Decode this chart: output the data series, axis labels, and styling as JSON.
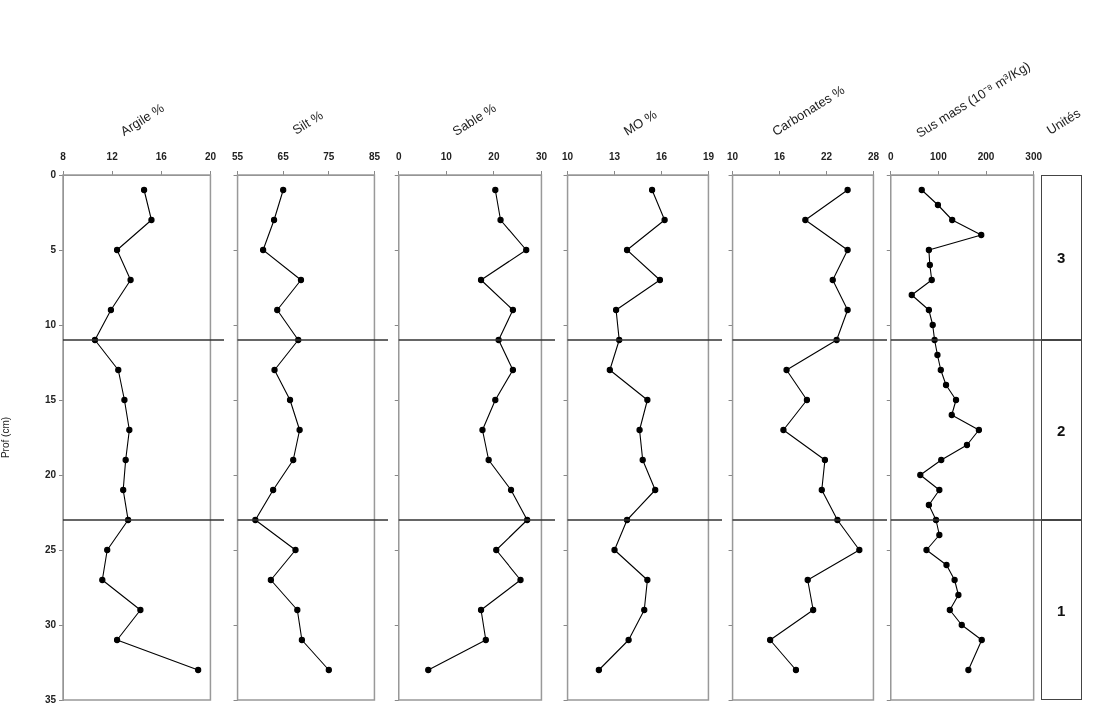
{
  "chart_data": [
    {
      "type": "line",
      "title": "Argile %",
      "ylabel": "Prof (cm)",
      "color": "#000000",
      "marker": "circle",
      "grid": false,
      "x": [
        14.6,
        15.2,
        12.4,
        13.5,
        11.9,
        10.6,
        12.5,
        13.0,
        13.4,
        13.1,
        12.9,
        13.3,
        11.6,
        11.2,
        14.3,
        12.4,
        19.0
      ],
      "values": [
        1,
        3,
        5,
        7,
        9,
        11,
        13,
        15,
        17,
        19,
        21,
        23,
        25,
        27,
        29,
        31,
        33
      ],
      "xlim": [
        8,
        20
      ],
      "xticks": [
        8,
        12,
        16,
        20
      ],
      "ylim": [
        35,
        0
      ],
      "yticks": [
        0,
        5,
        10,
        15,
        20,
        25,
        30,
        35
      ],
      "ref_lines": [
        {
          "axis": "y",
          "value": 11
        },
        {
          "axis": "y",
          "value": 23
        }
      ]
    },
    {
      "type": "line",
      "title": "Silt %",
      "color": "#000000",
      "marker": "circle",
      "grid": false,
      "tick_labels": "x",
      "x": [
        65.0,
        63.0,
        60.6,
        68.9,
        63.7,
        68.3,
        63.1,
        66.5,
        68.6,
        67.2,
        62.8,
        58.9,
        67.7,
        62.3,
        68.1,
        69.1,
        75.0
      ],
      "values": [
        1,
        3,
        5,
        7,
        9,
        11,
        13,
        15,
        17,
        19,
        21,
        23,
        25,
        27,
        29,
        31,
        33
      ],
      "xlim": [
        55,
        85
      ],
      "xticks": [
        55,
        65,
        75,
        85
      ],
      "ylim": [
        35,
        0
      ],
      "yticks": [
        0,
        5,
        10,
        15,
        20,
        25,
        30,
        35
      ],
      "ref_lines": [
        {
          "axis": "y",
          "value": 11
        },
        {
          "axis": "y",
          "value": 23
        }
      ]
    },
    {
      "type": "line",
      "title": "Sable %",
      "color": "#000000",
      "marker": "circle",
      "grid": false,
      "tick_labels": "x",
      "x": [
        20.3,
        21.4,
        26.8,
        17.3,
        24.0,
        21.0,
        24.0,
        20.3,
        17.6,
        18.9,
        23.6,
        27.0,
        20.5,
        25.6,
        17.3,
        18.3,
        6.2
      ],
      "values": [
        1,
        3,
        5,
        7,
        9,
        11,
        13,
        15,
        17,
        19,
        21,
        23,
        25,
        27,
        29,
        31,
        33
      ],
      "xlim": [
        0,
        30
      ],
      "xticks": [
        0,
        10,
        20,
        30
      ],
      "ylim": [
        35,
        0
      ],
      "yticks": [
        0,
        5,
        10,
        15,
        20,
        25,
        30,
        35
      ],
      "ref_lines": [
        {
          "axis": "y",
          "value": 11
        },
        {
          "axis": "y",
          "value": 23
        }
      ]
    },
    {
      "type": "line",
      "title": "MO %",
      "color": "#000000",
      "marker": "circle",
      "grid": false,
      "tick_labels": "x",
      "x": [
        15.4,
        16.2,
        13.8,
        15.9,
        13.1,
        13.3,
        12.7,
        15.1,
        14.6,
        14.8,
        15.6,
        13.8,
        13.0,
        15.1,
        14.9,
        13.9,
        12.0
      ],
      "values": [
        1,
        3,
        5,
        7,
        9,
        11,
        13,
        15,
        17,
        19,
        21,
        23,
        25,
        27,
        29,
        31,
        33
      ],
      "xlim": [
        10,
        19
      ],
      "xticks": [
        10,
        13,
        16,
        19
      ],
      "ylim": [
        35,
        0
      ],
      "yticks": [
        0,
        5,
        10,
        15,
        20,
        25,
        30,
        35
      ],
      "ref_lines": [
        {
          "axis": "y",
          "value": 11
        },
        {
          "axis": "y",
          "value": 23
        }
      ]
    },
    {
      "type": "line",
      "title": "Carbonates %",
      "color": "#000000",
      "marker": "circle",
      "grid": false,
      "tick_labels": "x",
      "x": [
        24.7,
        19.3,
        24.7,
        22.8,
        24.7,
        23.3,
        16.9,
        19.5,
        16.5,
        21.8,
        21.4,
        23.4,
        26.2,
        19.6,
        20.3,
        14.8,
        18.1
      ],
      "values": [
        1,
        3,
        5,
        7,
        9,
        11,
        13,
        15,
        17,
        19,
        21,
        23,
        25,
        27,
        29,
        31,
        33
      ],
      "xlim": [
        10,
        28
      ],
      "xticks": [
        10,
        16,
        22,
        28
      ],
      "ylim": [
        35,
        0
      ],
      "yticks": [
        0,
        5,
        10,
        15,
        20,
        25,
        30,
        35
      ],
      "ref_lines": [
        {
          "axis": "y",
          "value": 11
        },
        {
          "axis": "y",
          "value": 23
        }
      ]
    },
    {
      "type": "line",
      "title": "Sus mass (10⁻⁸ m³/Kg)",
      "color": "#000000",
      "marker": "circle",
      "grid": false,
      "tick_labels": "x",
      "x": [
        65,
        99,
        129,
        190,
        80,
        82,
        86,
        44,
        80,
        88,
        92,
        98,
        105,
        116,
        137,
        128,
        185,
        160,
        106,
        62,
        102,
        80,
        95,
        102,
        75,
        117,
        134,
        142,
        124,
        149,
        191,
        163
      ],
      "values": [
        1,
        2,
        3,
        4,
        5,
        6,
        7,
        8,
        9,
        10,
        11,
        12,
        13,
        14,
        15,
        16,
        17,
        18,
        19,
        20,
        21,
        22,
        23,
        24,
        25,
        26,
        27,
        28,
        29,
        30,
        31,
        33
      ],
      "xlim": [
        0,
        300
      ],
      "xticks": [
        0,
        100,
        200,
        300
      ],
      "ylim": [
        35,
        0
      ],
      "yticks": [
        0,
        5,
        10,
        15,
        20,
        25,
        30,
        35
      ],
      "ref_lines": [
        {
          "axis": "y",
          "value": 11
        },
        {
          "axis": "y",
          "value": 23
        }
      ],
      "annotations": [
        "Unités",
        "3",
        "2",
        "1"
      ]
    }
  ]
}
